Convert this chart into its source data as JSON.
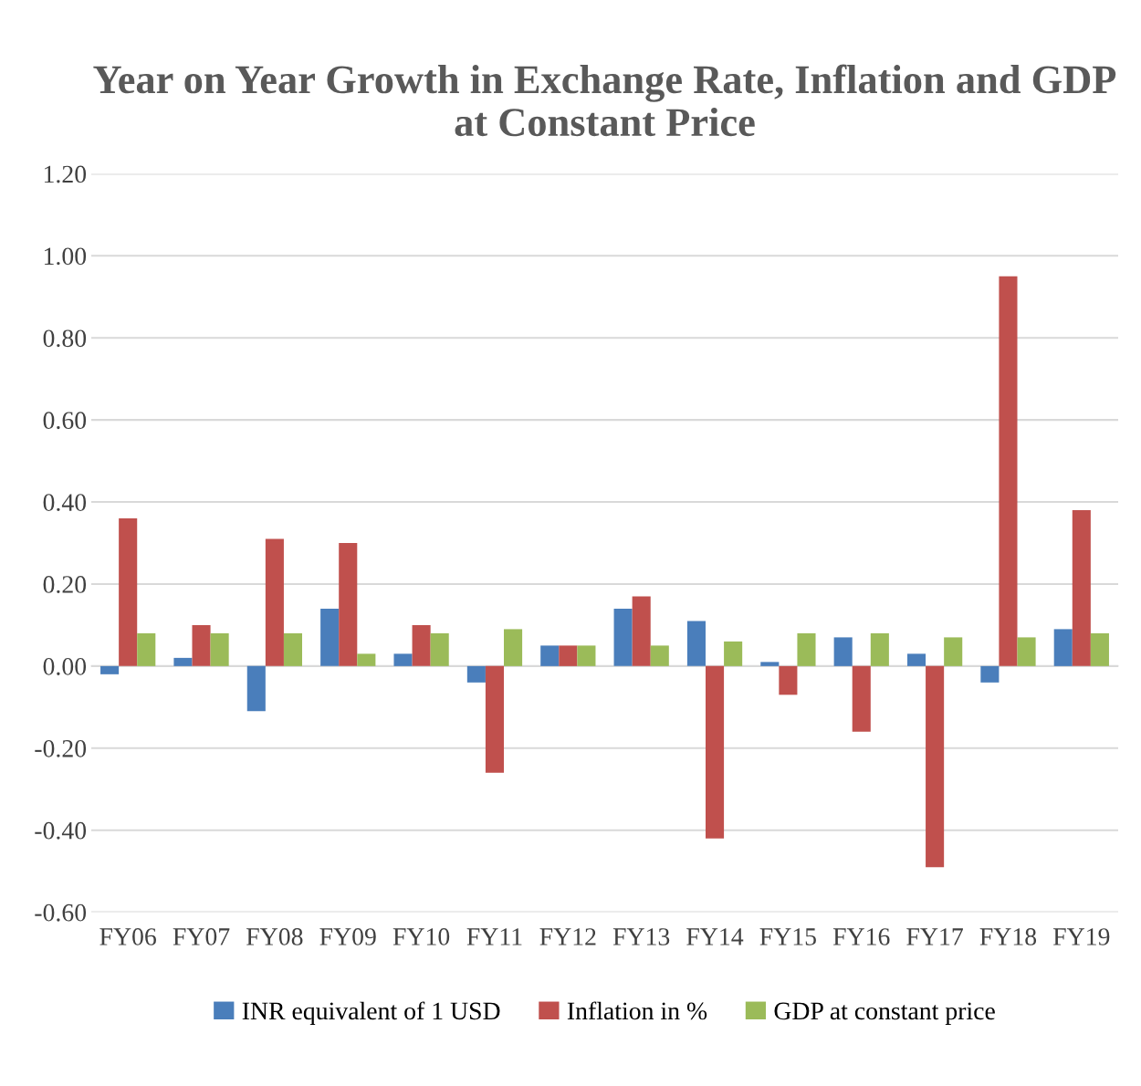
{
  "chart_data": {
    "type": "bar",
    "title": "Year on Year Growth in Exchange Rate, Inflation and GDP\nat Constant Price",
    "categories": [
      "FY06",
      "FY07",
      "FY08",
      "FY09",
      "FY10",
      "FY11",
      "FY12",
      "FY13",
      "FY14",
      "FY15",
      "FY16",
      "FY17",
      "FY18",
      "FY19"
    ],
    "series": [
      {
        "name": "INR equivalent of 1 USD",
        "color": "#4a7ebb",
        "values": [
          -0.02,
          0.02,
          -0.11,
          0.14,
          0.03,
          -0.04,
          0.05,
          0.14,
          0.11,
          0.01,
          0.07,
          0.03,
          -0.04,
          0.09
        ]
      },
      {
        "name": "Inflation in %",
        "color": "#c0504d",
        "values": [
          0.36,
          0.1,
          0.31,
          0.3,
          0.1,
          -0.26,
          0.05,
          0.17,
          -0.42,
          -0.07,
          -0.16,
          -0.49,
          0.95,
          0.38
        ]
      },
      {
        "name": "GDP at constant price",
        "color": "#9bbb59",
        "values": [
          0.08,
          0.08,
          0.08,
          0.03,
          0.08,
          0.09,
          0.05,
          0.05,
          0.06,
          0.08,
          0.08,
          0.07,
          0.07,
          0.08
        ]
      }
    ],
    "ylim": [
      -0.6,
      1.2
    ],
    "yticks": [
      {
        "value": -0.6,
        "label": "-0.60"
      },
      {
        "value": -0.4,
        "label": "-0.40"
      },
      {
        "value": -0.2,
        "label": "-0.20"
      },
      {
        "value": 0,
        "label": "0.00"
      },
      {
        "value": 0.2,
        "label": "0.20"
      },
      {
        "value": 0.4,
        "label": "0.40"
      },
      {
        "value": 0.6,
        "label": "0.60"
      },
      {
        "value": 0.8,
        "label": "0.80"
      },
      {
        "value": 1.0,
        "label": "1.00"
      },
      {
        "value": 1.2,
        "label": "1.20"
      }
    ],
    "grid": "y",
    "legend": "bottom"
  }
}
